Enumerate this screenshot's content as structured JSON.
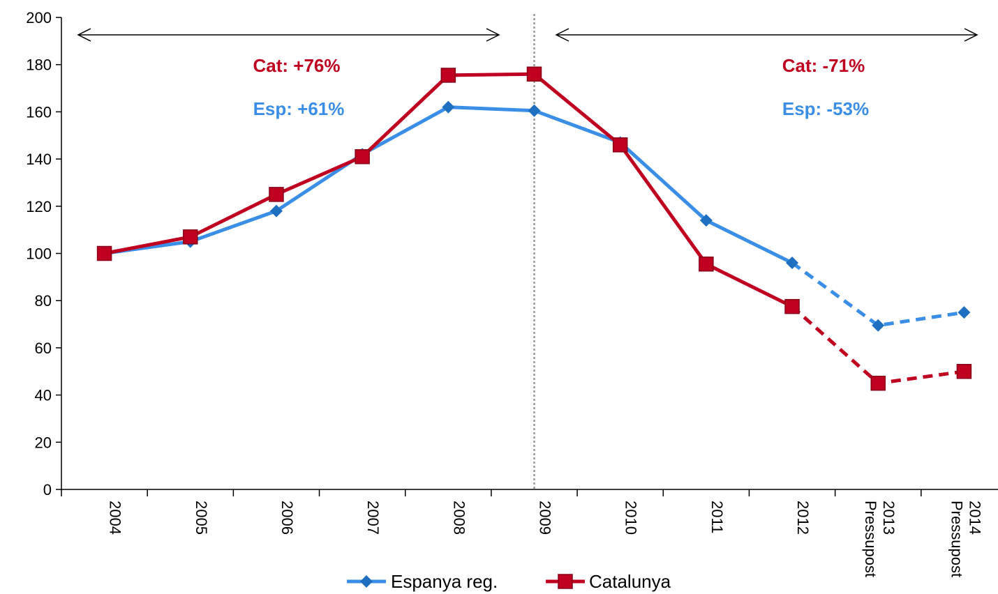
{
  "chart_data": {
    "type": "line",
    "categories": [
      "2004",
      "2005",
      "2006",
      "2007",
      "2008",
      "2009",
      "2010",
      "2011",
      "2012",
      "Pressupost 2013",
      "Pressupost 2014"
    ],
    "category_lines": [
      [
        "2004"
      ],
      [
        "2005"
      ],
      [
        "2006"
      ],
      [
        "2007"
      ],
      [
        "2008"
      ],
      [
        "2009"
      ],
      [
        "2010"
      ],
      [
        "2011"
      ],
      [
        "2012"
      ],
      [
        "Pressupost",
        "2013"
      ],
      [
        "Pressupost",
        "2014"
      ]
    ],
    "ylim": [
      0,
      200
    ],
    "yticks": [
      0,
      20,
      40,
      60,
      80,
      100,
      120,
      140,
      160,
      180,
      200
    ],
    "dashed_from_index": 8,
    "series": [
      {
        "name": "Espanya reg.",
        "color": "#3a8ee6",
        "marker": "diamond",
        "values": [
          100,
          105,
          118,
          142,
          162,
          160.5,
          147,
          114,
          96,
          69.5,
          75
        ]
      },
      {
        "name": "Catalunya",
        "color": "#c00020",
        "marker": "square",
        "values": [
          100,
          107,
          125,
          141,
          175.5,
          176,
          146,
          95.5,
          77.5,
          45,
          50
        ]
      }
    ],
    "divider_after_category": "2009",
    "annotations": [
      {
        "text": "Cat: +76%",
        "color": "#c00020"
      },
      {
        "text": "Esp: +61%",
        "color": "#3a8ee6"
      },
      {
        "text": "Cat: -71%",
        "color": "#c00020"
      },
      {
        "text": "Esp: -53%",
        "color": "#3a8ee6"
      }
    ],
    "legend_position": "bottom",
    "grid": false
  }
}
